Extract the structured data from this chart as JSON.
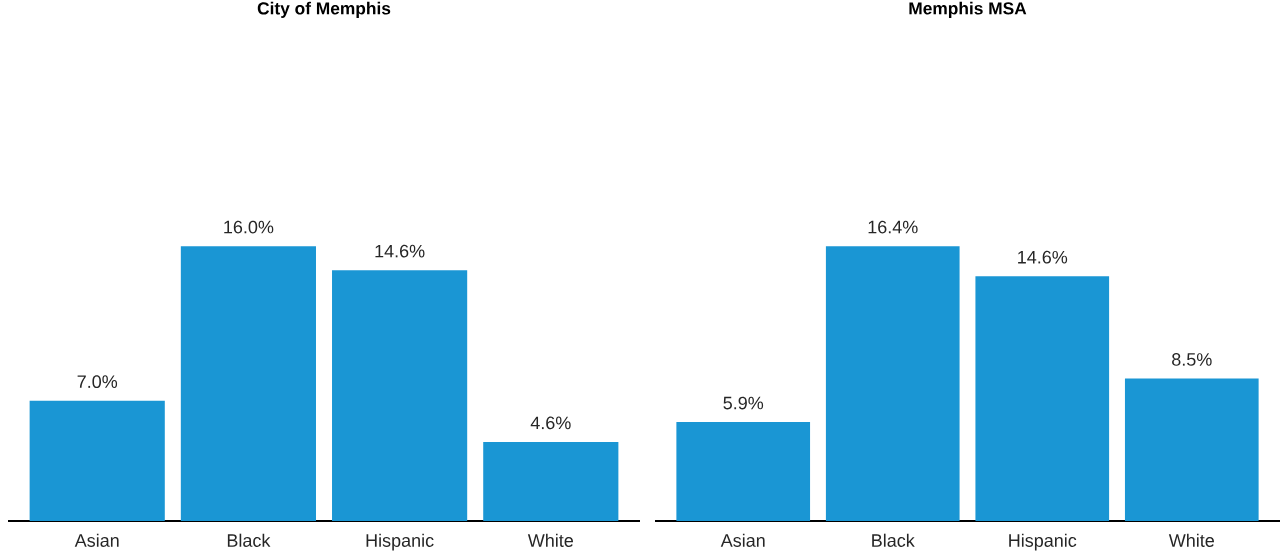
{
  "chart_data": [
    {
      "type": "bar",
      "title": "City of Memphis",
      "categories": [
        "Asian",
        "Black",
        "Hispanic",
        "White"
      ],
      "values": [
        7.0,
        16.0,
        14.6,
        4.6
      ],
      "value_labels": [
        "7.0%",
        "16.0%",
        "14.6%",
        "4.6%"
      ],
      "color": "#1a96d4",
      "tick_labels": "x"
    },
    {
      "type": "bar",
      "title": "Memphis MSA",
      "categories": [
        "Asian",
        "Black",
        "Hispanic",
        "White"
      ],
      "values": [
        5.9,
        16.4,
        14.6,
        8.5
      ],
      "value_labels": [
        "5.9%",
        "16.4%",
        "14.6%",
        "8.5%"
      ],
      "color": "#1a96d4",
      "tick_labels": "x"
    }
  ]
}
